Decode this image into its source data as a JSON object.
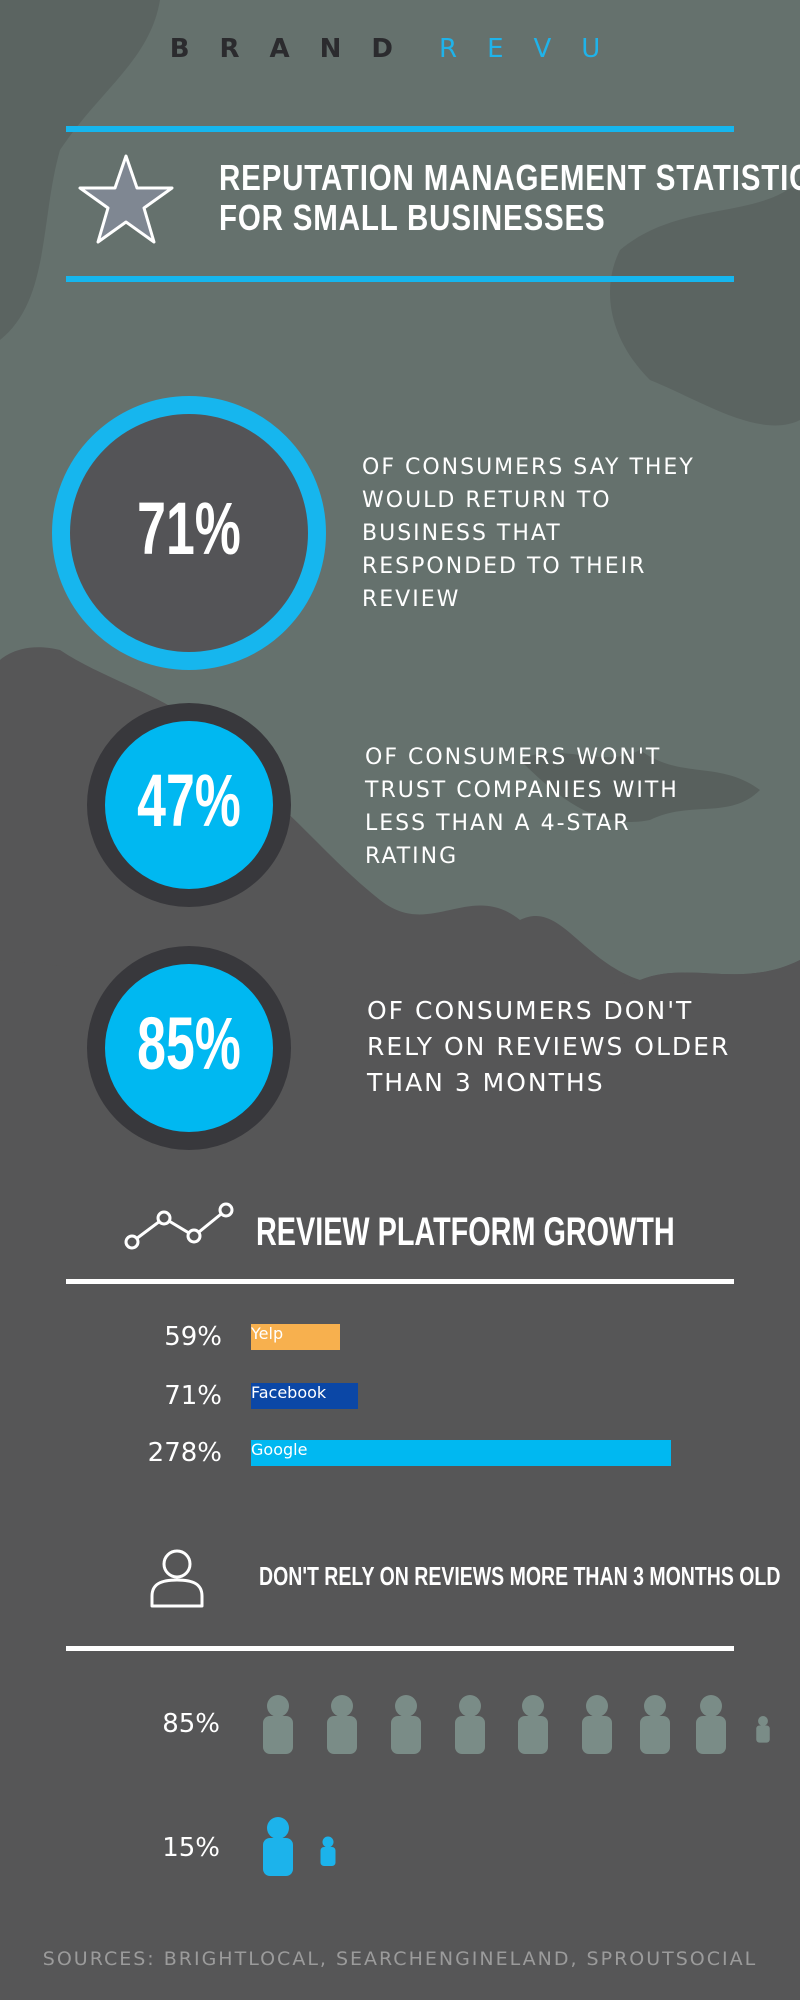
{
  "brand": {
    "dark": "BRAND",
    "light": "REVU"
  },
  "header": {
    "title_lines": [
      "REPUTATION MANAGEMENT STATISTICS",
      "FOR SMALL BUSINESSES"
    ]
  },
  "stats": [
    {
      "figure": "71%",
      "text": "OF CONSUMERS SAY THEY WOULD RETURN TO BUSINESS THAT RESPONDED TO THEIR REVIEW"
    },
    {
      "figure": "47%",
      "text": "OF CONSUMERS WON'T TRUST COMPANIES WITH LESS THAN A 4-STAR RATING"
    },
    {
      "figure": "85%",
      "text": "OF CONSUMERS DON'T RELY ON REVIEWS OLDER THAN 3 MONTHS"
    }
  ],
  "growth": {
    "title": "REVIEW PLATFORM GROWTH",
    "categories": [
      "Yelp",
      "Facebook",
      "Google"
    ],
    "values": [
      59,
      71,
      278
    ],
    "value_labels": [
      "59%",
      "71%",
      "278%"
    ],
    "colors": [
      "#f7b04e",
      "#0b47a6",
      "#00b8f1"
    ]
  },
  "recency": {
    "title": "DON'T RELY ON REVIEWS MORE THAN 3 MONTHS OLD",
    "rows": [
      "85%",
      "15%"
    ]
  },
  "footer": {
    "sources": "SOURCES: BRIGHTLOCAL, SEARCHENGINELAND, SPROUTSOCIAL"
  }
}
